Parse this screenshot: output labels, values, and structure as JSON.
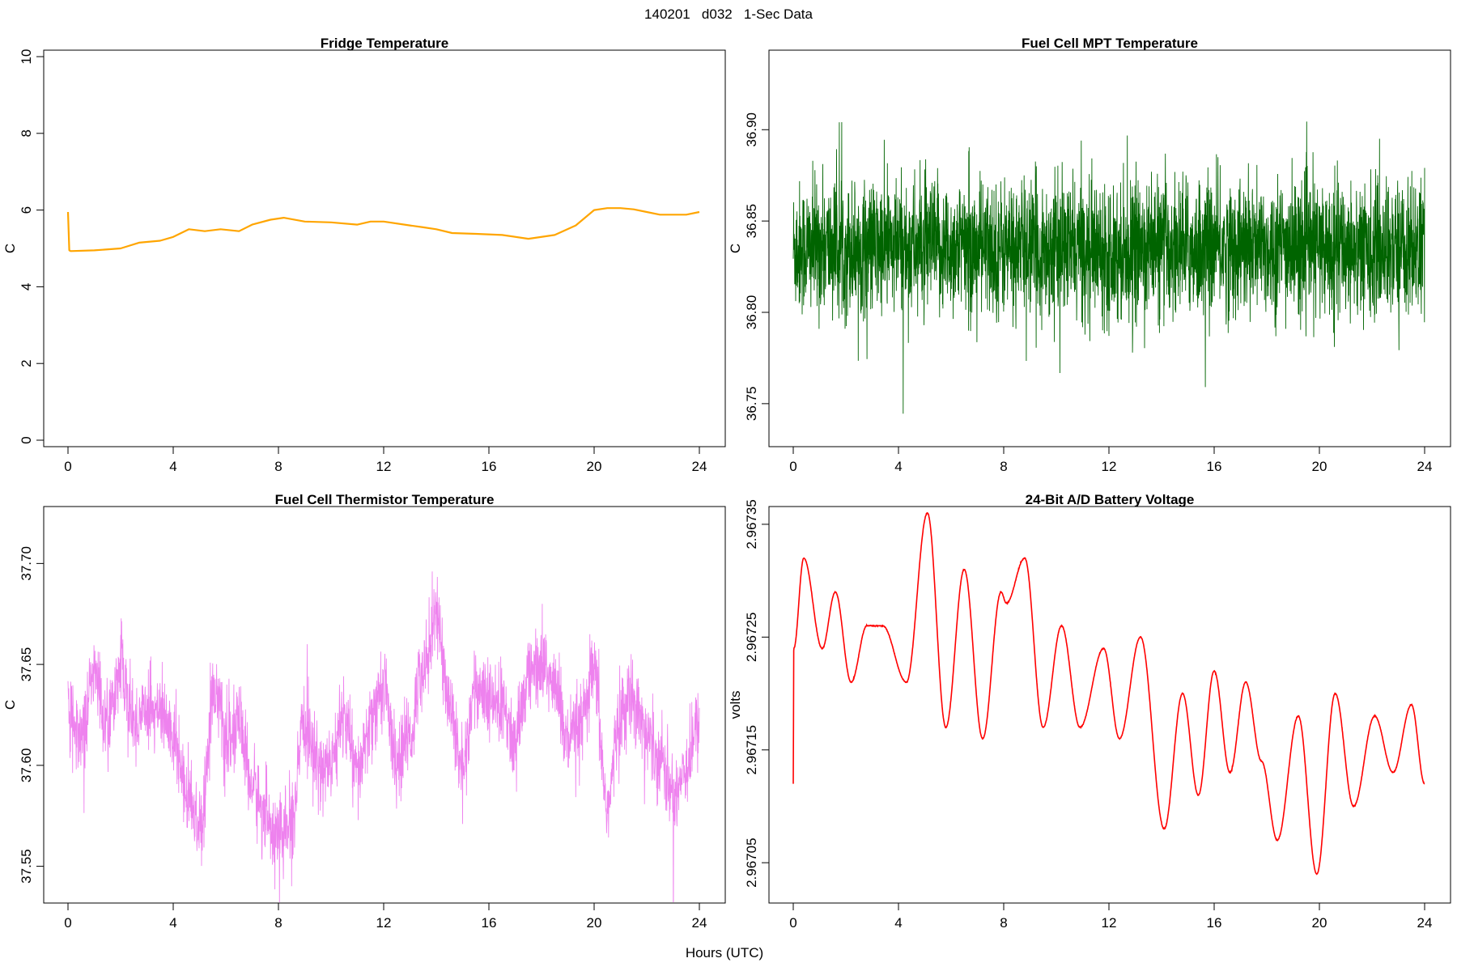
{
  "figure": {
    "title": "140201   d032   1-Sec Data",
    "xlabel": "Hours (UTC)"
  },
  "chart_data": [
    {
      "type": "line",
      "title": "Fridge Temperature",
      "xlabel": "",
      "ylabel": "C",
      "xlim": [
        0,
        24
      ],
      "ylim": [
        0,
        10
      ],
      "xticks": [
        0,
        4,
        8,
        12,
        16,
        20,
        24
      ],
      "xtick_labels": [
        "0",
        "4",
        "8",
        "12",
        "16",
        "20",
        "24"
      ],
      "yticks": [
        0,
        2,
        4,
        6,
        8,
        10
      ],
      "ytick_labels": [
        "0",
        "2",
        "4",
        "6",
        "8",
        "10"
      ],
      "color": "#FFA500",
      "noise": 0.0,
      "series": [
        {
          "name": "fridge",
          "x": [
            0,
            0.05,
            0.1,
            1,
            2,
            2.7,
            3.5,
            4,
            4.6,
            5.2,
            5.8,
            6.5,
            7,
            7.7,
            8.2,
            9,
            10,
            11,
            11.5,
            12,
            13,
            13.5,
            14,
            14.6,
            15.5,
            16.5,
            17.5,
            18.5,
            19.3,
            20,
            20.5,
            21,
            21.5,
            22,
            22.5,
            23,
            23.5,
            24
          ],
          "y": [
            5.95,
            4.95,
            4.93,
            4.95,
            5.0,
            5.15,
            5.2,
            5.3,
            5.5,
            5.45,
            5.5,
            5.45,
            5.62,
            5.75,
            5.8,
            5.7,
            5.68,
            5.62,
            5.7,
            5.7,
            5.6,
            5.55,
            5.5,
            5.4,
            5.38,
            5.35,
            5.25,
            5.35,
            5.6,
            6.0,
            6.05,
            6.05,
            6.02,
            5.95,
            5.88,
            5.88,
            5.88,
            5.95
          ]
        }
      ]
    },
    {
      "type": "line",
      "title": "Fuel Cell MPT Temperature",
      "xlabel": "",
      "ylabel": "C",
      "xlim": [
        0,
        24
      ],
      "ylim": [
        36.73,
        36.94
      ],
      "xticks": [
        0,
        4,
        8,
        12,
        16,
        20,
        24
      ],
      "xtick_labels": [
        "0",
        "4",
        "8",
        "12",
        "16",
        "20",
        "24"
      ],
      "yticks": [
        36.75,
        36.8,
        36.85,
        36.9
      ],
      "ytick_labels": [
        "36.75",
        "36.80",
        "36.85",
        "36.90"
      ],
      "color": "#006400",
      "noise": 0.055,
      "series": [
        {
          "name": "mpt",
          "x": [
            0,
            24
          ],
          "y": [
            36.835,
            36.835
          ]
        }
      ]
    },
    {
      "type": "line",
      "title": "Fuel Cell Thermistor Temperature",
      "xlabel": "",
      "ylabel": "C",
      "xlim": [
        0,
        24
      ],
      "ylim": [
        37.535,
        37.725
      ],
      "xticks": [
        0,
        4,
        8,
        12,
        16,
        20,
        24
      ],
      "xtick_labels": [
        "0",
        "4",
        "8",
        "12",
        "16",
        "20",
        "24"
      ],
      "yticks": [
        37.55,
        37.6,
        37.65,
        37.7
      ],
      "ytick_labels": [
        "37.55",
        "37.60",
        "37.65",
        "37.70"
      ],
      "color": "#EE82EE",
      "noise": 0.03,
      "series": [
        {
          "name": "thermistor",
          "x": [
            0,
            0.5,
            1,
            1.5,
            2,
            2.5,
            3,
            3.5,
            4,
            4.5,
            5,
            5.6,
            6,
            6.5,
            7,
            7.5,
            8,
            8.5,
            9,
            9.5,
            10,
            10.5,
            11,
            11.5,
            12,
            12.5,
            13,
            13.5,
            14,
            14.5,
            15,
            15.5,
            16,
            16.5,
            17,
            17.5,
            18,
            18.5,
            19,
            19.5,
            20,
            20.5,
            21,
            21.5,
            22,
            22.5,
            23,
            23.5,
            24
          ],
          "y": [
            37.63,
            37.615,
            37.645,
            37.62,
            37.65,
            37.62,
            37.63,
            37.625,
            37.615,
            37.59,
            37.57,
            37.64,
            37.61,
            37.62,
            37.59,
            37.575,
            37.565,
            37.57,
            37.62,
            37.6,
            37.6,
            37.625,
            37.595,
            37.62,
            37.64,
            37.6,
            37.615,
            37.65,
            37.675,
            37.63,
            37.6,
            37.64,
            37.63,
            37.63,
            37.61,
            37.645,
            37.65,
            37.64,
            37.61,
            37.62,
            37.645,
            37.58,
            37.625,
            37.635,
            37.615,
            37.605,
            37.585,
            37.6,
            37.62
          ]
        }
      ]
    },
    {
      "type": "line",
      "title": "24-Bit A/D Battery Voltage",
      "xlabel": "",
      "ylabel": "volts",
      "xlim": [
        0,
        24
      ],
      "ylim": [
        2.96702,
        2.96736
      ],
      "xticks": [
        0,
        4,
        8,
        12,
        16,
        20,
        24
      ],
      "xtick_labels": [
        "0",
        "4",
        "8",
        "12",
        "16",
        "20",
        "24"
      ],
      "yticks": [
        2.96705,
        2.96715,
        2.96725,
        2.96735
      ],
      "ytick_labels": [
        "2.96705",
        "2.96715",
        "2.96725",
        "2.96735"
      ],
      "color": "#FF0000",
      "noise": 6e-07,
      "series": [
        {
          "name": "battery",
          "x": [
            0,
            0.02,
            0.4,
            1.1,
            1.6,
            2.2,
            2.8,
            3.4,
            4.3,
            5.1,
            5.8,
            6.5,
            7.2,
            7.9,
            8.1,
            8.8,
            9.5,
            10.2,
            10.9,
            11.8,
            12.4,
            13.2,
            14.1,
            14.8,
            15.4,
            16.0,
            16.6,
            17.2,
            17.8,
            18.4,
            19.2,
            19.9,
            20.6,
            21.3,
            22.1,
            22.8,
            23.5,
            24
          ],
          "y": [
            2.96712,
            2.96724,
            2.96732,
            2.96724,
            2.96729,
            2.96721,
            2.96726,
            2.96726,
            2.96721,
            2.96736,
            2.96717,
            2.96731,
            2.96716,
            2.96729,
            2.96728,
            2.96732,
            2.96717,
            2.96726,
            2.96717,
            2.96724,
            2.96716,
            2.96725,
            2.96708,
            2.9672,
            2.96711,
            2.96722,
            2.96713,
            2.96721,
            2.96714,
            2.96707,
            2.96718,
            2.96704,
            2.9672,
            2.9671,
            2.96718,
            2.96713,
            2.96719,
            2.96712
          ]
        }
      ]
    }
  ]
}
